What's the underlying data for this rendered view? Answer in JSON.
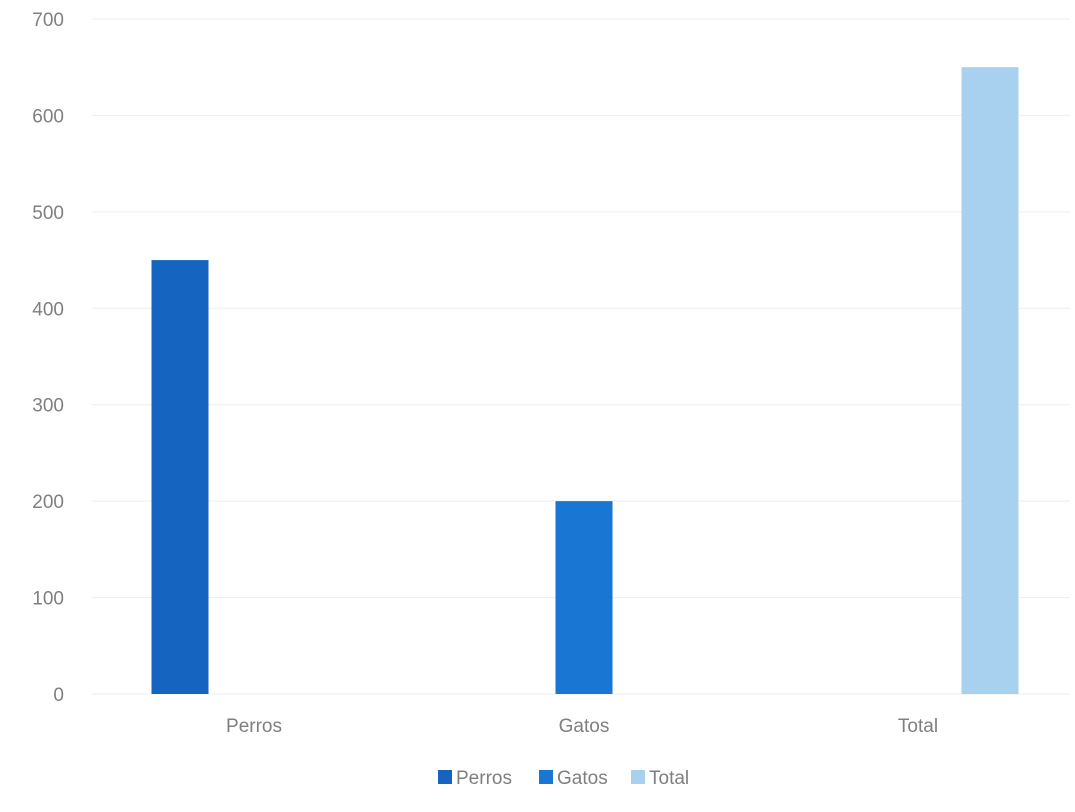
{
  "chart_data": {
    "type": "bar",
    "categories": [
      "Perros",
      "Gatos",
      "Total"
    ],
    "series": [
      {
        "name": "Perros",
        "category": "Perros",
        "value": 450,
        "color": "#1565c0"
      },
      {
        "name": "Gatos",
        "category": "Gatos",
        "value": 200,
        "color": "#1976d2"
      },
      {
        "name": "Total",
        "category": "Total",
        "value": 650,
        "color": "#a8d0ef"
      }
    ],
    "yticks": [
      0,
      100,
      200,
      300,
      400,
      500,
      600,
      700
    ],
    "ylim": [
      0,
      700
    ],
    "grid": true,
    "legend": "bottom-center",
    "title": "",
    "xlabel": "",
    "ylabel": ""
  }
}
